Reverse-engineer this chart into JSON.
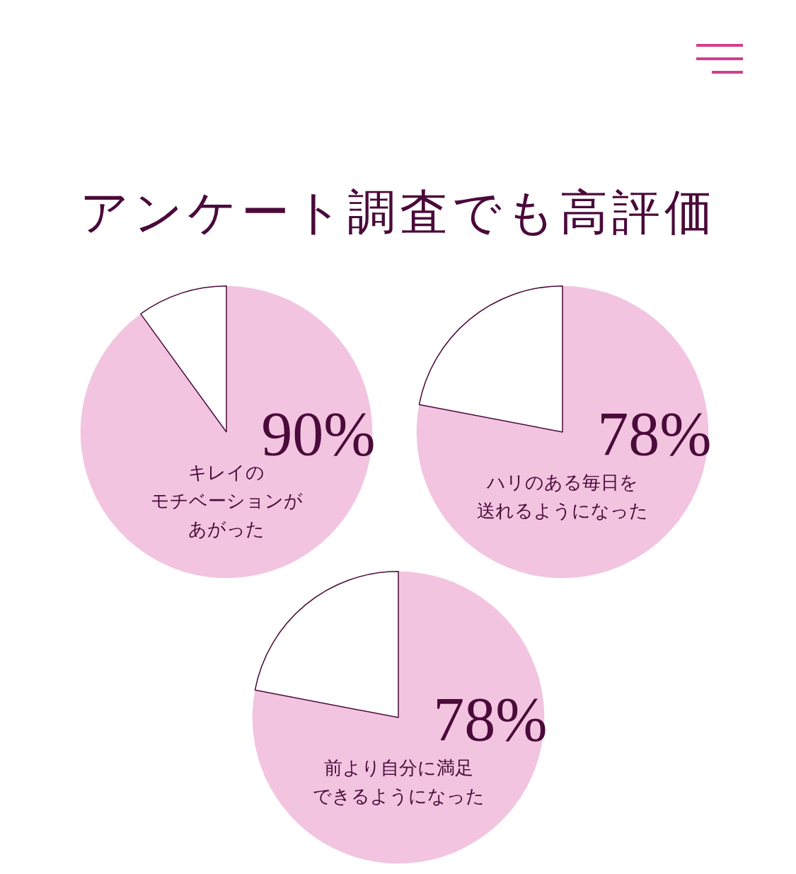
{
  "chart_data": [
    {
      "type": "pie",
      "title": "アンケート調査でも高評価",
      "categories": [
        "キレイのモチベーションがあがった",
        null
      ],
      "values": [
        90,
        10
      ],
      "colors": [
        "#f2c4e0",
        "#ffffff"
      ],
      "value_labels": [
        "90%",
        null
      ],
      "legend": false
    },
    {
      "type": "pie",
      "categories": [
        "ハリのある毎日を送れるようになった",
        null
      ],
      "values": [
        78,
        22
      ],
      "colors": [
        "#f2c4e0",
        "#ffffff"
      ],
      "value_labels": [
        "78%",
        null
      ],
      "legend": false
    },
    {
      "type": "pie",
      "categories": [
        "前より自分に満足できるようになった",
        null
      ],
      "values": [
        78,
        22
      ],
      "colors": [
        "#f2c4e0",
        "#ffffff"
      ],
      "value_labels": [
        "78%",
        null
      ],
      "legend": false
    }
  ]
}
